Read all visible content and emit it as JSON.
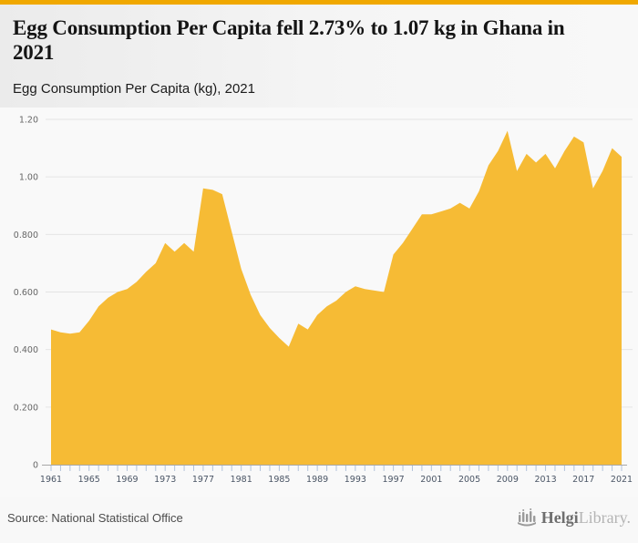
{
  "colors": {
    "accent_bar": "#F0A800",
    "area": "#F6BB35",
    "grid": "#e4e4e4",
    "axis_line": "#a8a8a8",
    "tick": "#b3c3da",
    "x_text": "#4a5565",
    "y_text": "#666666"
  },
  "header": {
    "title": "Egg Consumption Per Capita fell 2.73% to 1.07 kg in Ghana in 2021",
    "subtitle": "Egg Consumption Per Capita (kg), 2021"
  },
  "chart_data": {
    "type": "area",
    "title": "Egg Consumption Per Capita fell 2.73% to 1.07 kg in Ghana in 2021",
    "subtitle": "Egg Consumption Per Capita (kg), 2021",
    "series_name": "Egg Consumption Per Capita (kg)",
    "xlabel": "",
    "ylabel": "",
    "grid": "horizontal",
    "legend": "none",
    "ylim": [
      0,
      1.2
    ],
    "x": [
      1961,
      1962,
      1963,
      1964,
      1965,
      1966,
      1967,
      1968,
      1969,
      1970,
      1971,
      1972,
      1973,
      1974,
      1975,
      1976,
      1977,
      1978,
      1979,
      1980,
      1981,
      1982,
      1983,
      1984,
      1985,
      1986,
      1987,
      1988,
      1989,
      1990,
      1991,
      1992,
      1993,
      1994,
      1995,
      1996,
      1997,
      1998,
      1999,
      2000,
      2001,
      2002,
      2003,
      2004,
      2005,
      2006,
      2007,
      2008,
      2009,
      2010,
      2011,
      2012,
      2013,
      2014,
      2015,
      2016,
      2017,
      2018,
      2019,
      2020,
      2021
    ],
    "values": [
      0.47,
      0.46,
      0.455,
      0.46,
      0.5,
      0.55,
      0.58,
      0.6,
      0.61,
      0.635,
      0.67,
      0.7,
      0.77,
      0.74,
      0.77,
      0.74,
      0.96,
      0.955,
      0.94,
      0.81,
      0.68,
      0.59,
      0.52,
      0.475,
      0.44,
      0.41,
      0.49,
      0.47,
      0.52,
      0.55,
      0.57,
      0.6,
      0.62,
      0.61,
      0.605,
      0.6,
      0.73,
      0.77,
      0.82,
      0.87,
      0.87,
      0.88,
      0.89,
      0.91,
      0.89,
      0.95,
      1.04,
      1.09,
      1.16,
      1.02,
      1.08,
      1.05,
      1.08,
      1.03,
      1.09,
      1.14,
      1.12,
      0.96,
      1.02,
      1.1,
      1.07
    ],
    "yticks": {
      "labels": [
        "1.20",
        "1.00",
        "0.800",
        "0.600",
        "0.400",
        "0.200",
        "0"
      ],
      "values": [
        1.2,
        1.0,
        0.8,
        0.6,
        0.4,
        0.2,
        0
      ]
    },
    "xtick_label_years": [
      1961,
      1965,
      1969,
      1973,
      1977,
      1981,
      1985,
      1989,
      1993,
      1997,
      2001,
      2005,
      2009,
      2013,
      2017,
      2021
    ]
  },
  "footer": {
    "source": "Source: National Statistical Office",
    "logo_primary": "Helgi",
    "logo_secondary": "Library."
  }
}
